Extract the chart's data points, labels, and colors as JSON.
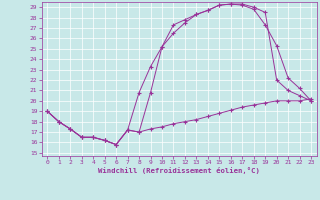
{
  "xlabel": "Windchill (Refroidissement éolien,°C)",
  "background_color": "#c8e8e8",
  "line_color": "#993399",
  "xlim": [
    -0.5,
    23.5
  ],
  "ylim": [
    14.7,
    29.5
  ],
  "xticks": [
    0,
    1,
    2,
    3,
    4,
    5,
    6,
    7,
    8,
    9,
    10,
    11,
    12,
    13,
    14,
    15,
    16,
    17,
    18,
    19,
    20,
    21,
    22,
    23
  ],
  "yticks": [
    15,
    16,
    17,
    18,
    19,
    20,
    21,
    22,
    23,
    24,
    25,
    26,
    27,
    28,
    29
  ],
  "line1_x": [
    0,
    1,
    2,
    3,
    4,
    5,
    6,
    7,
    8,
    9,
    10,
    11,
    12,
    13,
    14,
    15,
    16,
    17,
    18,
    19,
    20,
    21,
    22,
    23
  ],
  "line1_y": [
    19.0,
    18.0,
    17.3,
    16.5,
    16.5,
    16.2,
    15.8,
    17.2,
    17.0,
    17.3,
    17.5,
    17.8,
    18.0,
    18.2,
    18.5,
    18.8,
    19.1,
    19.4,
    19.6,
    19.8,
    20.0,
    20.0,
    20.0,
    20.2
  ],
  "line2_x": [
    0,
    1,
    2,
    3,
    4,
    5,
    6,
    7,
    8,
    9,
    10,
    11,
    12,
    13,
    14,
    15,
    16,
    17,
    18,
    19,
    20,
    21,
    22,
    23
  ],
  "line2_y": [
    19.0,
    18.0,
    17.3,
    16.5,
    16.5,
    16.2,
    15.8,
    17.2,
    20.8,
    23.3,
    25.2,
    26.5,
    27.5,
    28.3,
    28.7,
    29.2,
    29.3,
    29.2,
    28.8,
    27.3,
    25.3,
    22.2,
    21.2,
    20.0
  ],
  "line3_x": [
    0,
    1,
    2,
    3,
    4,
    5,
    6,
    7,
    8,
    9,
    10,
    11,
    12,
    13,
    14,
    15,
    16,
    17,
    18,
    19,
    20,
    21,
    22,
    23
  ],
  "line3_y": [
    19.0,
    18.0,
    17.3,
    16.5,
    16.5,
    16.2,
    15.8,
    17.2,
    17.0,
    20.8,
    25.2,
    27.3,
    27.8,
    28.3,
    28.7,
    29.2,
    29.3,
    29.3,
    29.0,
    28.5,
    22.0,
    21.0,
    20.5,
    20.0
  ]
}
